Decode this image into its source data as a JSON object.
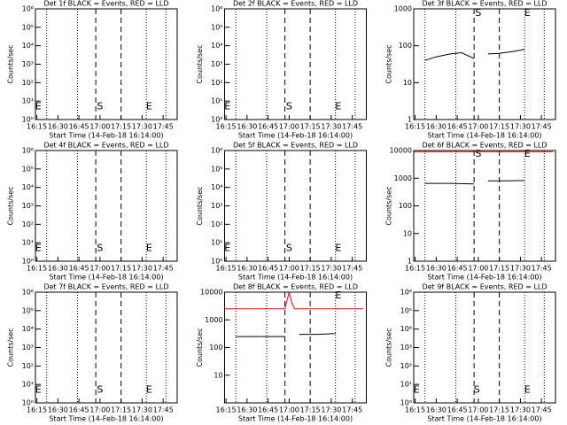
{
  "chart_data": [
    {
      "type": "line",
      "title": "Det 1f BLACK = Events, RED = LLD",
      "xlabel": "Start Time (14-Feb-18 16:14:00)",
      "ylabel": "Counts/sec",
      "xlim": [
        "16:14",
        "17:55"
      ],
      "xticks": [
        "16:15",
        "16:30",
        "16:45",
        "17:00",
        "17:15",
        "17:30",
        "17:45"
      ],
      "ylim": [
        1,
        1000000
      ],
      "log_y": true,
      "yticks": [
        {
          "value": 1,
          "label": "10⁰"
        },
        {
          "value": 10,
          "label": "10¹"
        },
        {
          "value": 100,
          "label": "10²"
        },
        {
          "value": 1000,
          "label": "10³"
        },
        {
          "value": 10000,
          "label": "10⁴"
        },
        {
          "value": 100000,
          "label": "10⁵"
        },
        {
          "value": 1000000,
          "label": "10⁶"
        }
      ],
      "vlines": [
        {
          "x": "16:22",
          "style": "dotted"
        },
        {
          "x": "16:44",
          "style": "dotted"
        },
        {
          "x": "16:57",
          "style": "dashed"
        },
        {
          "x": "17:15",
          "style": "dashed"
        },
        {
          "x": "17:33",
          "style": "dotted"
        },
        {
          "x": "17:47",
          "style": "dotted"
        }
      ],
      "annotations": [
        {
          "text": "E",
          "x": "16:16",
          "y": 5
        },
        {
          "text": "S",
          "x": "17:00",
          "y": 5
        },
        {
          "text": "E",
          "x": "17:35",
          "y": 5
        }
      ]
    },
    {
      "type": "line",
      "title": "Det 2f BLACK = Events, RED = LLD",
      "xlabel": "Start Time (14-Feb-18 16:14:00)",
      "ylabel": "Counts/sec",
      "xlim": [
        "16:14",
        "17:55"
      ],
      "xticks": [
        "16:15",
        "16:30",
        "16:45",
        "17:00",
        "17:15",
        "17:30",
        "17:45"
      ],
      "ylim": [
        1,
        1000000
      ],
      "log_y": true,
      "yticks": [
        {
          "value": 1,
          "label": "10⁰"
        },
        {
          "value": 10,
          "label": "10¹"
        },
        {
          "value": 100,
          "label": "10²"
        },
        {
          "value": 1000,
          "label": "10³"
        },
        {
          "value": 10000,
          "label": "10⁴"
        },
        {
          "value": 100000,
          "label": "10⁵"
        },
        {
          "value": 1000000,
          "label": "10⁶"
        }
      ],
      "vlines": [
        {
          "x": "16:22",
          "style": "dotted"
        },
        {
          "x": "16:44",
          "style": "dotted"
        },
        {
          "x": "16:57",
          "style": "dashed"
        },
        {
          "x": "17:15",
          "style": "dashed"
        },
        {
          "x": "17:33",
          "style": "dotted"
        },
        {
          "x": "17:47",
          "style": "dotted"
        }
      ],
      "annotations": [
        {
          "text": "E",
          "x": "16:16",
          "y": 5
        },
        {
          "text": "S",
          "x": "17:00",
          "y": 5
        },
        {
          "text": "E",
          "x": "17:35",
          "y": 5
        }
      ]
    },
    {
      "type": "line",
      "title": "Det 3f BLACK = Events, RED = LLD",
      "xlabel": "Start Time (14-Feb-18 16:14:00)",
      "ylabel": "Counts/sec",
      "xlim": [
        "16:14",
        "17:55"
      ],
      "xticks": [
        "16:15",
        "16:30",
        "16:45",
        "17:00",
        "17:15",
        "17:30",
        "17:45"
      ],
      "ylim": [
        1,
        1000
      ],
      "log_y": true,
      "yticks": [
        1,
        10,
        100,
        1000
      ],
      "vlines": [
        {
          "x": "16:22",
          "style": "dotted"
        },
        {
          "x": "16:44",
          "style": "dotted"
        },
        {
          "x": "16:57",
          "style": "dashed"
        },
        {
          "x": "17:15",
          "style": "dashed"
        },
        {
          "x": "17:33",
          "style": "dotted"
        },
        {
          "x": "17:47",
          "style": "dotted"
        }
      ],
      "annotations": [
        {
          "text": "S",
          "x": "17:00",
          "y": 750
        },
        {
          "text": "E",
          "x": "17:35",
          "y": 750
        }
      ],
      "x": [
        "16:22",
        "16:30",
        "16:40",
        "16:48",
        "16:57",
        "17:00",
        "17:07",
        "17:15",
        "17:25",
        "17:33"
      ],
      "series": [
        {
          "name": "Events",
          "color": "#000000",
          "values": [
            40,
            50,
            60,
            65,
            45,
            null,
            60,
            62,
            70,
            80
          ]
        }
      ]
    },
    {
      "type": "line",
      "title": "Det 4f BLACK = Events, RED = LLD",
      "xlabel": "Start Time (14-Feb-18 16:14:00)",
      "ylabel": "Counts/sec",
      "xlim": [
        "16:14",
        "17:55"
      ],
      "xticks": [
        "16:15",
        "16:30",
        "16:45",
        "17:00",
        "17:15",
        "17:30",
        "17:45"
      ],
      "ylim": [
        1,
        1000000
      ],
      "log_y": true,
      "yticks": [
        {
          "value": 1,
          "label": "10⁰"
        },
        {
          "value": 10,
          "label": "10¹"
        },
        {
          "value": 100,
          "label": "10²"
        },
        {
          "value": 1000,
          "label": "10³"
        },
        {
          "value": 10000,
          "label": "10⁴"
        },
        {
          "value": 100000,
          "label": "10⁵"
        },
        {
          "value": 1000000,
          "label": "10⁶"
        }
      ],
      "vlines": [
        {
          "x": "16:22",
          "style": "dotted"
        },
        {
          "x": "16:44",
          "style": "dotted"
        },
        {
          "x": "16:57",
          "style": "dashed"
        },
        {
          "x": "17:15",
          "style": "dashed"
        },
        {
          "x": "17:33",
          "style": "dotted"
        },
        {
          "x": "17:47",
          "style": "dotted"
        }
      ],
      "annotations": [
        {
          "text": "E",
          "x": "16:16",
          "y": 5
        },
        {
          "text": "S",
          "x": "17:00",
          "y": 5
        },
        {
          "text": "E",
          "x": "17:35",
          "y": 5
        }
      ]
    },
    {
      "type": "line",
      "title": "Det 5f BLACK = Events, RED = LLD",
      "xlabel": "Start Time (14-Feb-18 16:14:00)",
      "ylabel": "Counts/sec",
      "xlim": [
        "16:14",
        "17:55"
      ],
      "xticks": [
        "16:15",
        "16:30",
        "16:45",
        "17:00",
        "17:15",
        "17:30",
        "17:45"
      ],
      "ylim": [
        1,
        1000000
      ],
      "log_y": true,
      "yticks": [
        {
          "value": 1,
          "label": "10⁰"
        },
        {
          "value": 10,
          "label": "10¹"
        },
        {
          "value": 100,
          "label": "10²"
        },
        {
          "value": 1000,
          "label": "10³"
        },
        {
          "value": 10000,
          "label": "10⁴"
        },
        {
          "value": 100000,
          "label": "10⁵"
        },
        {
          "value": 1000000,
          "label": "10⁶"
        }
      ],
      "vlines": [
        {
          "x": "16:22",
          "style": "dotted"
        },
        {
          "x": "16:44",
          "style": "dotted"
        },
        {
          "x": "16:57",
          "style": "dashed"
        },
        {
          "x": "17:15",
          "style": "dashed"
        },
        {
          "x": "17:33",
          "style": "dotted"
        },
        {
          "x": "17:47",
          "style": "dotted"
        }
      ],
      "annotations": [
        {
          "text": "E",
          "x": "16:16",
          "y": 5
        },
        {
          "text": "S",
          "x": "17:00",
          "y": 5
        },
        {
          "text": "E",
          "x": "17:35",
          "y": 5
        }
      ]
    },
    {
      "type": "line",
      "title": "Det 6f BLACK = Events, RED = LLD",
      "xlabel": "Start Time (14-Feb-18 16:14:00)",
      "ylabel": "Counts/sec",
      "xlim": [
        "16:14",
        "17:55"
      ],
      "xticks": [
        "16:15",
        "16:30",
        "16:45",
        "17:00",
        "17:15",
        "17:30",
        "17:45"
      ],
      "ylim": [
        1,
        10000
      ],
      "log_y": true,
      "yticks": [
        1,
        10,
        100,
        1000,
        10000
      ],
      "vlines": [
        {
          "x": "16:22",
          "style": "dotted"
        },
        {
          "x": "16:44",
          "style": "dotted"
        },
        {
          "x": "16:57",
          "style": "dashed"
        },
        {
          "x": "17:15",
          "style": "dashed"
        },
        {
          "x": "17:33",
          "style": "dotted"
        },
        {
          "x": "17:47",
          "style": "dotted"
        }
      ],
      "annotations": [
        {
          "text": "S",
          "x": "17:00",
          "y": 7500
        },
        {
          "text": "E",
          "x": "17:35",
          "y": 7500
        }
      ],
      "x": [
        "16:14",
        "16:22",
        "16:40",
        "16:57",
        "17:00",
        "17:07",
        "17:20",
        "17:33",
        "17:53"
      ],
      "series": [
        {
          "name": "Events",
          "color": "#000000",
          "values": [
            null,
            650,
            650,
            620,
            null,
            800,
            800,
            820,
            null
          ]
        },
        {
          "name": "LLD",
          "color": "#ff0000",
          "values": [
            9000,
            9000,
            9000,
            9000,
            9000,
            9000,
            9000,
            9000,
            9000
          ]
        }
      ]
    },
    {
      "type": "line",
      "title": "Det 7f BLACK = Events, RED = LLD",
      "xlabel": "Start Time (14-Feb-18 16:14:00)",
      "ylabel": "Counts/sec",
      "xlim": [
        "16:14",
        "17:55"
      ],
      "xticks": [
        "16:15",
        "16:30",
        "16:45",
        "17:00",
        "17:15",
        "17:30",
        "17:45"
      ],
      "ylim": [
        1,
        1000000
      ],
      "log_y": true,
      "yticks": [
        {
          "value": 1,
          "label": "10⁰"
        },
        {
          "value": 10,
          "label": "10¹"
        },
        {
          "value": 100,
          "label": "10²"
        },
        {
          "value": 1000,
          "label": "10³"
        },
        {
          "value": 10000,
          "label": "10⁴"
        },
        {
          "value": 100000,
          "label": "10⁵"
        },
        {
          "value": 1000000,
          "label": "10⁶"
        }
      ],
      "vlines": [
        {
          "x": "16:22",
          "style": "dotted"
        },
        {
          "x": "16:44",
          "style": "dotted"
        },
        {
          "x": "16:57",
          "style": "dashed"
        },
        {
          "x": "17:15",
          "style": "dashed"
        },
        {
          "x": "17:33",
          "style": "dotted"
        },
        {
          "x": "17:47",
          "style": "dotted"
        }
      ],
      "annotations": [
        {
          "text": "E",
          "x": "16:16",
          "y": 5
        },
        {
          "text": "S",
          "x": "17:00",
          "y": 5
        },
        {
          "text": "E",
          "x": "17:35",
          "y": 5
        }
      ]
    },
    {
      "type": "line",
      "title": "Det 8f BLACK = Events, RED = LLD",
      "xlabel": "Start Time (14-Feb-18 16:14:00)",
      "ylabel": "Counts/sec",
      "xlim": [
        "16:14",
        "17:55"
      ],
      "xticks": [
        "16:15",
        "16:30",
        "16:45",
        "17:00",
        "17:15",
        "17:30",
        "17:45"
      ],
      "ylim": [
        1,
        10000
      ],
      "log_y": true,
      "yticks": [
        10,
        100,
        1000,
        10000
      ],
      "vlines": [
        {
          "x": "16:22",
          "style": "dotted"
        },
        {
          "x": "16:44",
          "style": "dotted"
        },
        {
          "x": "16:57",
          "style": "dashed"
        },
        {
          "x": "17:15",
          "style": "dashed"
        },
        {
          "x": "17:33",
          "style": "dotted"
        },
        {
          "x": "17:47",
          "style": "dotted"
        }
      ],
      "annotations": [
        {
          "text": "E",
          "x": "17:35",
          "y": 7500
        }
      ],
      "x": [
        "16:14",
        "16:22",
        "16:40",
        "16:57",
        "16:58",
        "17:00",
        "17:02",
        "17:04",
        "17:07",
        "17:20",
        "17:33",
        "17:53"
      ],
      "series": [
        {
          "name": "Events",
          "color": "#000000",
          "values": [
            null,
            250,
            250,
            250,
            null,
            null,
            null,
            null,
            300,
            300,
            320,
            null
          ]
        },
        {
          "name": "LLD",
          "color": "#ff0000",
          "values": [
            2500,
            2500,
            2500,
            2500,
            4000,
            10000,
            4000,
            2500,
            2500,
            2500,
            2500,
            2500
          ]
        }
      ]
    },
    {
      "type": "line",
      "title": "Det 9f BLACK = Events, RED = LLD",
      "xlabel": "Start Time (14-Feb-18 16:14:00)",
      "ylabel": "Counts/sec",
      "xlim": [
        "16:14",
        "17:55"
      ],
      "xticks": [
        "16:15",
        "16:30",
        "16:45",
        "17:00",
        "17:15",
        "17:30",
        "17:45"
      ],
      "ylim": [
        1,
        1000000
      ],
      "log_y": true,
      "yticks": [
        {
          "value": 1,
          "label": "10⁰"
        },
        {
          "value": 10,
          "label": "10¹"
        },
        {
          "value": 100,
          "label": "10²"
        },
        {
          "value": 1000,
          "label": "10³"
        },
        {
          "value": 10000,
          "label": "10⁴"
        },
        {
          "value": 100000,
          "label": "10⁵"
        },
        {
          "value": 1000000,
          "label": "10⁶"
        }
      ],
      "vlines": [
        {
          "x": "16:22",
          "style": "dotted"
        },
        {
          "x": "16:44",
          "style": "dotted"
        },
        {
          "x": "16:57",
          "style": "dashed"
        },
        {
          "x": "17:15",
          "style": "dashed"
        },
        {
          "x": "17:33",
          "style": "dotted"
        },
        {
          "x": "17:47",
          "style": "dotted"
        }
      ],
      "annotations": [
        {
          "text": "E",
          "x": "16:16",
          "y": 5
        },
        {
          "text": "S",
          "x": "16:59",
          "y": 5
        },
        {
          "text": "E",
          "x": "17:35",
          "y": 5
        }
      ]
    }
  ]
}
